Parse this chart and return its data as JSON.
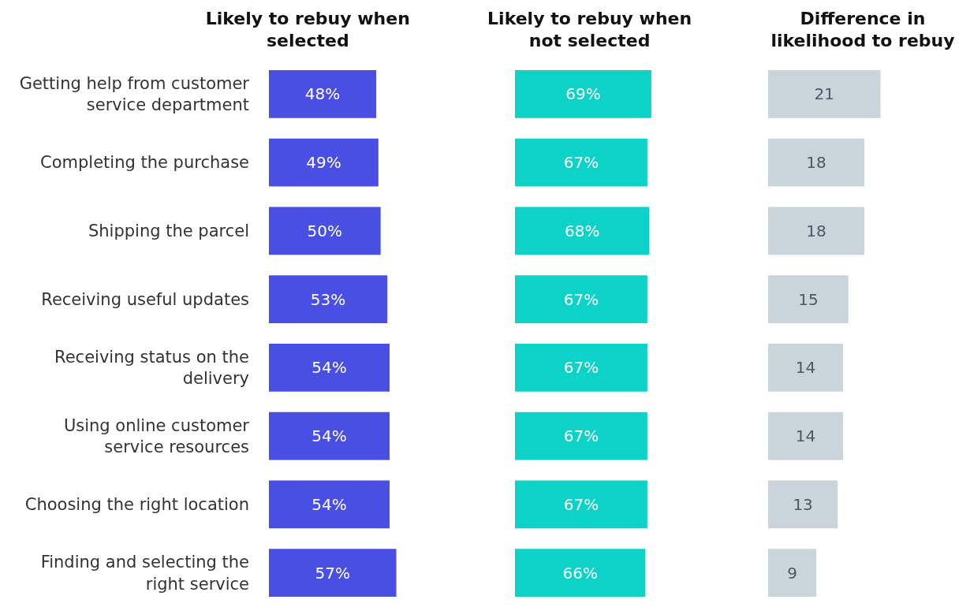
{
  "chart_data": [
    {
      "type": "bar",
      "orientation": "horizontal",
      "title": "Likely to rebuy when selected",
      "categories": [
        "Getting help from customer service department",
        "Completing the purchase",
        "Shipping the parcel",
        "Receiving useful updates",
        "Receiving status on the delivery",
        "Using online customer service resources",
        "Choosing the right location",
        "Finding and selecting the right service"
      ],
      "values": [
        48,
        49,
        50,
        53,
        54,
        54,
        54,
        57
      ],
      "value_labels": [
        "48%",
        "49%",
        "50%",
        "53%",
        "54%",
        "54%",
        "54%",
        "57%"
      ],
      "color": "#4a4fe4",
      "tick_labels": "y"
    },
    {
      "type": "bar",
      "orientation": "horizontal",
      "title": "Likely to rebuy when not selected",
      "categories": [
        "Getting help from customer service department",
        "Completing the purchase",
        "Shipping the parcel",
        "Receiving useful updates",
        "Receiving status on the delivery",
        "Using online customer service resources",
        "Choosing the right location",
        "Finding and selecting the right service"
      ],
      "values": [
        69,
        67,
        68,
        67,
        67,
        67,
        67,
        66
      ],
      "value_labels": [
        "69%",
        "67%",
        "68%",
        "67%",
        "67%",
        "67%",
        "67%",
        "66%"
      ],
      "color": "#0dd2c8",
      "tick_labels": false
    },
    {
      "type": "bar",
      "orientation": "horizontal",
      "title": "Difference in likelihood to rebuy",
      "categories": [
        "Getting help from customer service department",
        "Completing the purchase",
        "Shipping the parcel",
        "Receiving useful updates",
        "Receiving status on the delivery",
        "Using online customer service resources",
        "Choosing the right location",
        "Finding and selecting the right service"
      ],
      "values": [
        21,
        18,
        18,
        15,
        14,
        14,
        13,
        9
      ],
      "data_labels": true,
      "color": "#c9d4db",
      "tick_labels": false
    }
  ]
}
